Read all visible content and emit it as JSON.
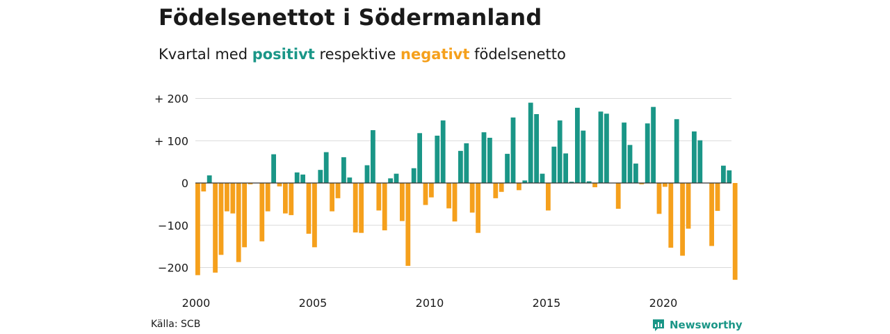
{
  "header": {
    "title": "Födelsenettot i Södermanland",
    "subtitle_prefix": "Kvartal med ",
    "subtitle_positive": "positivt",
    "subtitle_middle": " respektive ",
    "subtitle_negative": "negativt",
    "subtitle_suffix": " födelsenetto"
  },
  "footer": {
    "source": "Källa: SCB",
    "brand": "Newsworthy",
    "brand_icon": "newsworthy-logo-icon"
  },
  "colors": {
    "positive": "#1a9687",
    "negative": "#f5a01c",
    "grid": "#d9d9d9",
    "zero_line": "#333333"
  },
  "chart_data": {
    "type": "bar",
    "title": "Födelsenettot i Södermanland",
    "subtitle": "Kvartal med positivt respektive negativt födelsenetto",
    "x_start": "2000 Q1",
    "frequency": "quarter",
    "x_ticks": [
      "2000",
      "2005",
      "2010",
      "2015",
      "2020"
    ],
    "y_ticks": [
      {
        "value": 200,
        "label": "+ 200"
      },
      {
        "value": 100,
        "label": "+ 100"
      },
      {
        "value": 0,
        "label": "0"
      },
      {
        "value": -100,
        "label": "−100"
      },
      {
        "value": -200,
        "label": "−200"
      }
    ],
    "ylim": [
      -235,
      210
    ],
    "grid": true,
    "categories": [
      "2000 Q1",
      "2000 Q2",
      "2000 Q3",
      "2000 Q4",
      "2001 Q1",
      "2001 Q2",
      "2001 Q3",
      "2001 Q4",
      "2002 Q1",
      "2002 Q2",
      "2002 Q3",
      "2002 Q4",
      "2003 Q1",
      "2003 Q2",
      "2003 Q3",
      "2003 Q4",
      "2004 Q1",
      "2004 Q2",
      "2004 Q3",
      "2004 Q4",
      "2005 Q1",
      "2005 Q2",
      "2005 Q3",
      "2005 Q4",
      "2006 Q1",
      "2006 Q2",
      "2006 Q3",
      "2006 Q4",
      "2007 Q1",
      "2007 Q2",
      "2007 Q3",
      "2007 Q4",
      "2008 Q1",
      "2008 Q2",
      "2008 Q3",
      "2008 Q4",
      "2009 Q1",
      "2009 Q2",
      "2009 Q3",
      "2009 Q4",
      "2010 Q1",
      "2010 Q2",
      "2010 Q3",
      "2010 Q4",
      "2011 Q1",
      "2011 Q2",
      "2011 Q3",
      "2011 Q4",
      "2012 Q1",
      "2012 Q2",
      "2012 Q3",
      "2012 Q4",
      "2013 Q1",
      "2013 Q2",
      "2013 Q3",
      "2013 Q4",
      "2014 Q1",
      "2014 Q2",
      "2014 Q3",
      "2014 Q4",
      "2015 Q1",
      "2015 Q2",
      "2015 Q3",
      "2015 Q4",
      "2016 Q1",
      "2016 Q2",
      "2016 Q3",
      "2016 Q4",
      "2017 Q1",
      "2017 Q2",
      "2017 Q3",
      "2017 Q4",
      "2018 Q1",
      "2018 Q2",
      "2018 Q3",
      "2018 Q4",
      "2019 Q1",
      "2019 Q2",
      "2019 Q3",
      "2019 Q4",
      "2020 Q1",
      "2020 Q2",
      "2020 Q3",
      "2020 Q4",
      "2021 Q1",
      "2021 Q2",
      "2021 Q3",
      "2021 Q4",
      "2022 Q1",
      "2022 Q2",
      "2022 Q3",
      "2022 Q4",
      "2023 Q1"
    ],
    "values": [
      -218,
      -20,
      18,
      -212,
      -170,
      -67,
      -72,
      -187,
      -152,
      -3,
      0,
      -138,
      -67,
      68,
      -8,
      -72,
      -76,
      25,
      20,
      -120,
      -152,
      31,
      73,
      -67,
      -36,
      61,
      13,
      -117,
      -118,
      42,
      125,
      -65,
      -112,
      11,
      22,
      -90,
      -196,
      35,
      118,
      -52,
      -34,
      112,
      148,
      -60,
      -91,
      76,
      94,
      -70,
      -118,
      120,
      107,
      -36,
      -21,
      69,
      155,
      -17,
      6,
      190,
      163,
      22,
      -65,
      86,
      148,
      70,
      3,
      178,
      124,
      4,
      -10,
      169,
      164,
      0,
      -61,
      143,
      90,
      46,
      -3,
      141,
      180,
      -73,
      -9,
      -153,
      151,
      -172,
      -108,
      122,
      101,
      0,
      -149,
      -66,
      41,
      30,
      -229
    ]
  }
}
